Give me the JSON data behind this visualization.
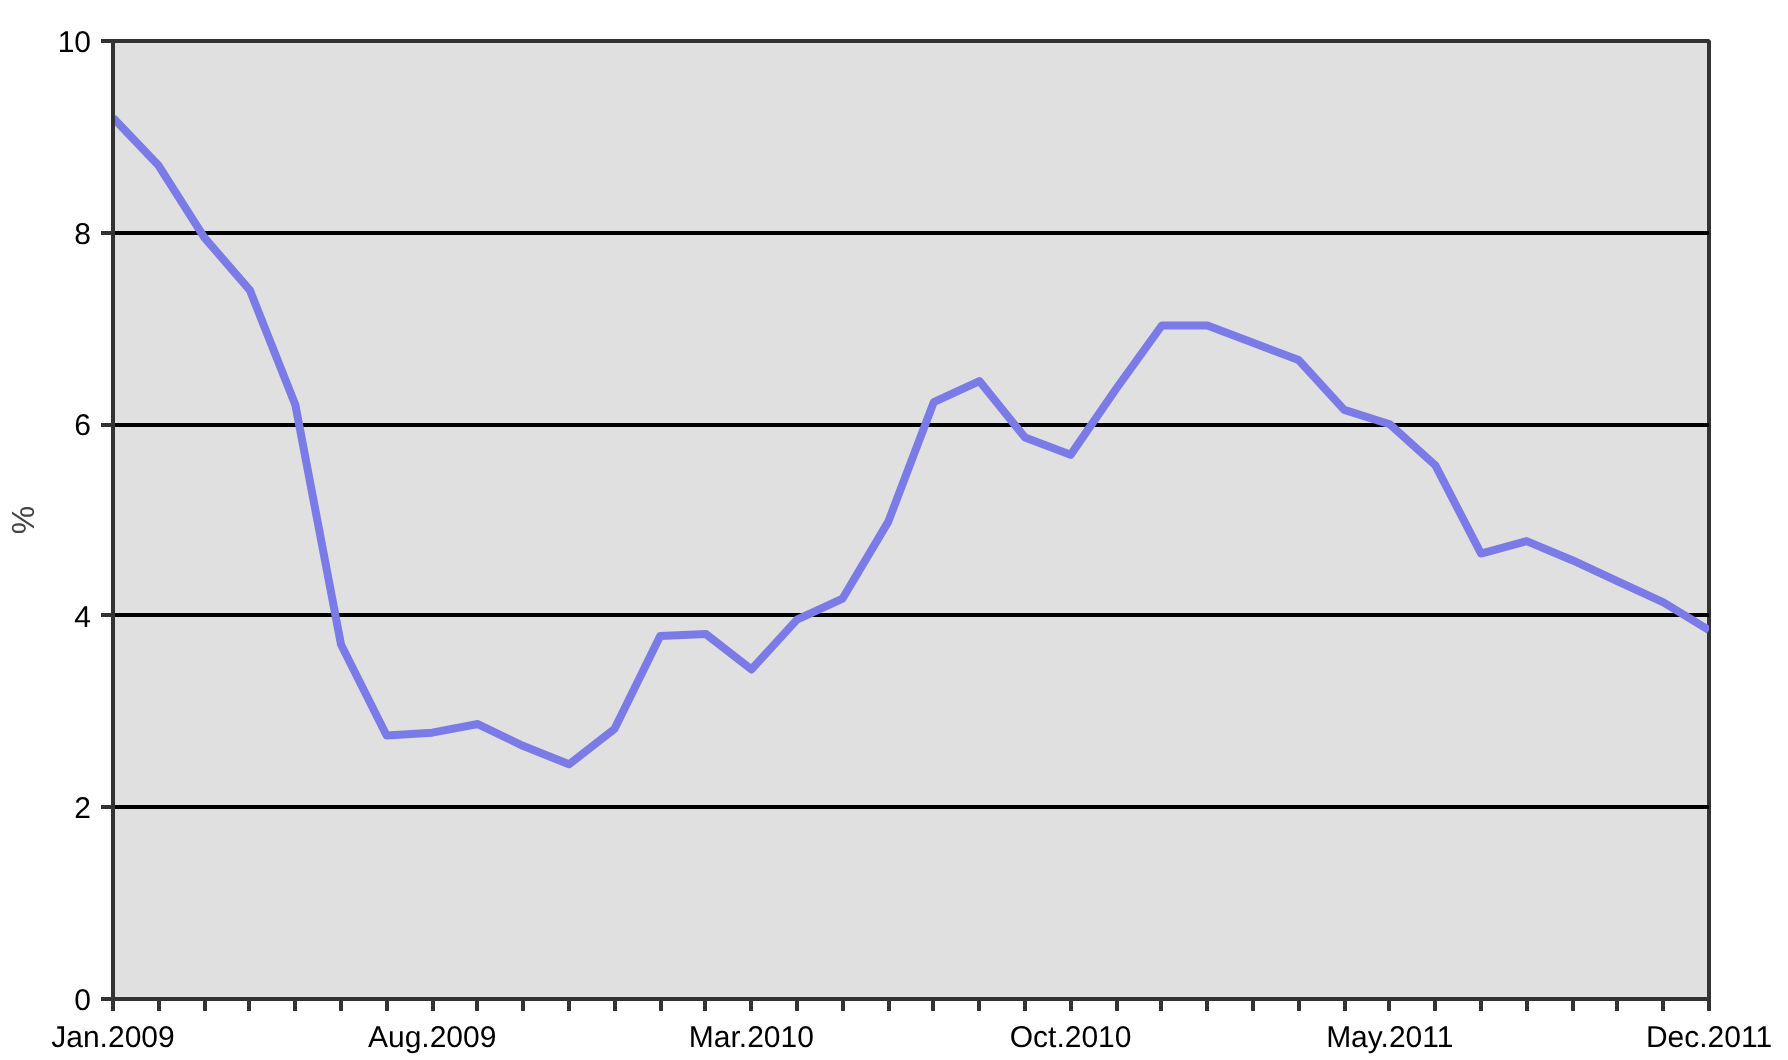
{
  "chart_data": {
    "type": "line",
    "ylabel": "%",
    "categories": [
      "Jan.2009",
      null,
      null,
      null,
      null,
      null,
      null,
      "Aug.2009",
      null,
      null,
      null,
      null,
      null,
      null,
      "Mar.2010",
      null,
      null,
      null,
      null,
      null,
      null,
      "Oct.2010",
      null,
      null,
      null,
      null,
      null,
      null,
      "May.2011",
      null,
      null,
      null,
      null,
      null,
      null,
      "Dec.2011"
    ],
    "series": [
      {
        "color": "#7b7be8",
        "values": [
          9.2,
          8.7,
          7.95,
          7.4,
          6.2,
          3.7,
          2.75,
          2.78,
          2.87,
          2.64,
          2.45,
          2.82,
          3.79,
          3.81,
          3.44,
          3.96,
          4.18,
          4.98,
          6.23,
          6.45,
          5.86,
          5.68,
          6.37,
          7.03,
          7.03,
          6.85,
          6.67,
          6.15,
          6.0,
          5.57,
          4.65,
          4.78,
          4.58,
          4.36,
          4.14,
          3.85
        ]
      }
    ],
    "ylim": [
      0,
      10
    ],
    "yticks": [
      0,
      2,
      4,
      6,
      8,
      10
    ],
    "grid": "y",
    "marker": "none",
    "line_style": "solid"
  }
}
